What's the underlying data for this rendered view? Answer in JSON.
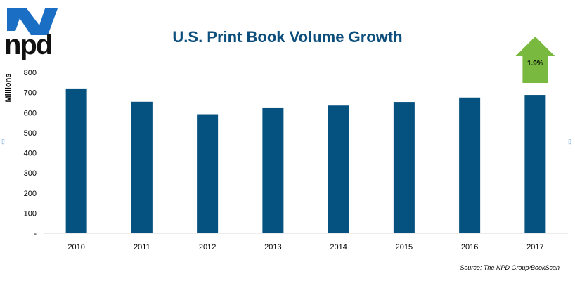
{
  "logo": {
    "name": "npd",
    "icon": "npd-swoosh-logo",
    "color": "#1a6fc4"
  },
  "chart_data": {
    "type": "bar",
    "title": "U.S. Print Book Volume Growth",
    "ylabel": "Millions",
    "xlabel": "",
    "categories": [
      "2010",
      "2011",
      "2012",
      "2013",
      "2014",
      "2015",
      "2016",
      "2017"
    ],
    "values": [
      720,
      654,
      592,
      622,
      635,
      653,
      675,
      688
    ],
    "ylim": [
      0,
      800
    ],
    "yticks": [
      0,
      100,
      200,
      300,
      400,
      500,
      600,
      700,
      800
    ],
    "ytick_labels": [
      "-",
      "100",
      "200",
      "300",
      "400",
      "500",
      "600",
      "700",
      "800"
    ],
    "bar_color": "#05517f",
    "grid": false,
    "annotation": {
      "text": "1.9%",
      "category": "2017",
      "shape": "up-arrow",
      "color": "#7ab93f"
    }
  },
  "source": "Source: The NPD Group/BookScan"
}
